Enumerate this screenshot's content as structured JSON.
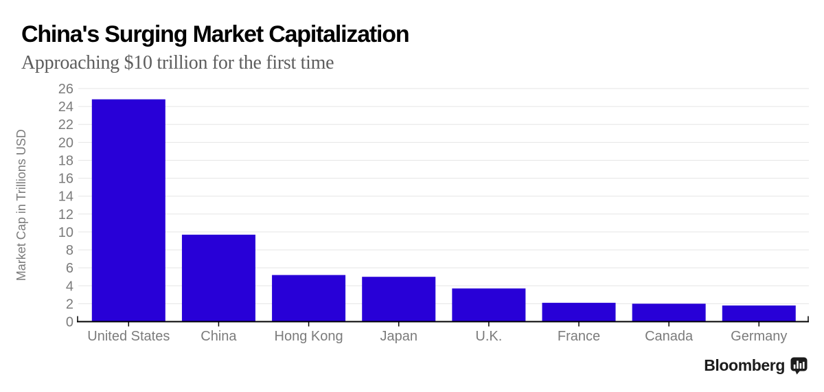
{
  "header": {
    "title": "China's Surging Market Capitalization",
    "subtitle": "Approaching $10 trillion for the first time"
  },
  "chart_data": {
    "type": "bar",
    "title": "China's Surging Market Capitalization",
    "subtitle": "Approaching $10 trillion for the first time",
    "categories": [
      "United States",
      "China",
      "Hong Kong",
      "Japan",
      "U.K.",
      "France",
      "Canada",
      "Germany"
    ],
    "values": [
      24.8,
      9.7,
      5.2,
      5.0,
      3.7,
      2.1,
      2.0,
      1.8
    ],
    "xlabel": "",
    "ylabel": "Market Cap in Trillions USD",
    "ylim": [
      0,
      26
    ],
    "yticks": [
      0,
      2,
      4,
      6,
      8,
      10,
      12,
      14,
      16,
      18,
      20,
      22,
      24,
      26
    ],
    "grid": "horizontal",
    "legend": "none",
    "bar_color": "#2800d7"
  },
  "colors": {
    "bar": "#2800d7",
    "title_text": "#000000",
    "subtitle_text": "#5d5d5d",
    "axis_text": "#7b7b7b",
    "gridline": "#e5e5e5",
    "axis_line": "#000000",
    "logo": "#1c1c1c",
    "background": "#ffffff"
  },
  "branding": {
    "logo_text": "Bloomberg",
    "logo_icon": "bar-chart-bubble-icon"
  }
}
